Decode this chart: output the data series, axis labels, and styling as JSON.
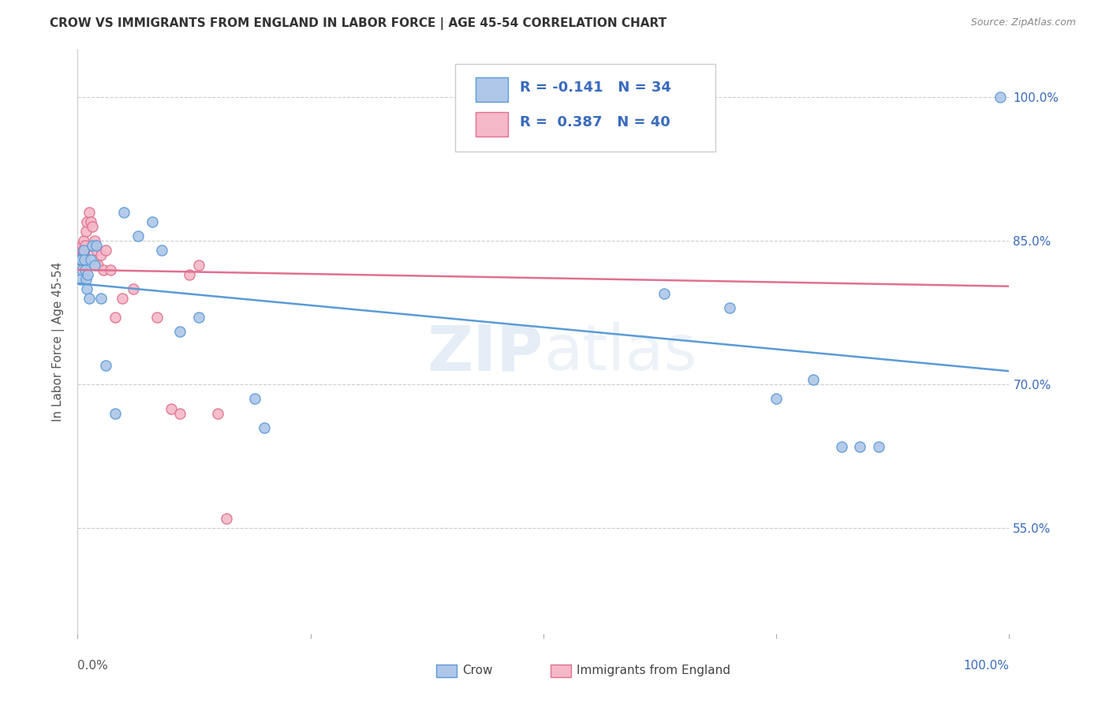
{
  "title": "CROW VS IMMIGRANTS FROM ENGLAND IN LABOR FORCE | AGE 45-54 CORRELATION CHART",
  "source": "Source: ZipAtlas.com",
  "ylabel": "In Labor Force | Age 45-54",
  "watermark": "ZIPatlas",
  "ytick_values": [
    0.55,
    0.7,
    0.85,
    1.0
  ],
  "legend_crow_R": "-0.141",
  "legend_crow_N": "34",
  "legend_eng_R": "0.387",
  "legend_eng_N": "40",
  "crow_face_color": "#aec6e8",
  "crow_edge_color": "#5b9bd5",
  "eng_face_color": "#f4b8c8",
  "eng_edge_color": "#e07090",
  "crow_line_color": "#5b9bd5",
  "eng_line_color": "#e07090",
  "crow_x": [
    0.002,
    0.003,
    0.004,
    0.005,
    0.006,
    0.007,
    0.008,
    0.009,
    0.01,
    0.011,
    0.012,
    0.014,
    0.016,
    0.018,
    0.02,
    0.025,
    0.03,
    0.04,
    0.05,
    0.065,
    0.08,
    0.09,
    0.11,
    0.13,
    0.19,
    0.2,
    0.63,
    0.7,
    0.75,
    0.79,
    0.82,
    0.84,
    0.86,
    0.99
  ],
  "crow_y": [
    0.83,
    0.81,
    0.83,
    0.82,
    0.84,
    0.83,
    0.82,
    0.81,
    0.8,
    0.815,
    0.79,
    0.83,
    0.845,
    0.825,
    0.845,
    0.79,
    0.72,
    0.67,
    0.88,
    0.855,
    0.87,
    0.84,
    0.755,
    0.77,
    0.685,
    0.655,
    0.795,
    0.78,
    0.685,
    0.705,
    0.635,
    0.635,
    0.635,
    1.0
  ],
  "eng_x": [
    0.002,
    0.002,
    0.002,
    0.003,
    0.003,
    0.003,
    0.004,
    0.004,
    0.005,
    0.005,
    0.005,
    0.006,
    0.006,
    0.006,
    0.007,
    0.007,
    0.008,
    0.009,
    0.01,
    0.012,
    0.014,
    0.016,
    0.018,
    0.02,
    0.022,
    0.025,
    0.028,
    0.03,
    0.035,
    0.04,
    0.048,
    0.06,
    0.085,
    0.1,
    0.11,
    0.12,
    0.13,
    0.15,
    0.16,
    0.53
  ],
  "eng_y": [
    0.83,
    0.84,
    0.835,
    0.83,
    0.835,
    0.84,
    0.835,
    0.84,
    0.835,
    0.84,
    0.845,
    0.835,
    0.84,
    0.85,
    0.835,
    0.84,
    0.845,
    0.86,
    0.87,
    0.88,
    0.87,
    0.865,
    0.85,
    0.84,
    0.825,
    0.835,
    0.82,
    0.84,
    0.82,
    0.77,
    0.79,
    0.8,
    0.77,
    0.675,
    0.67,
    0.815,
    0.825,
    0.67,
    0.56,
    0.99
  ],
  "xlim": [
    0.0,
    1.0
  ],
  "ylim": [
    0.44,
    1.05
  ],
  "xtick_positions": [
    0.0,
    0.25,
    0.5,
    0.75,
    1.0
  ]
}
